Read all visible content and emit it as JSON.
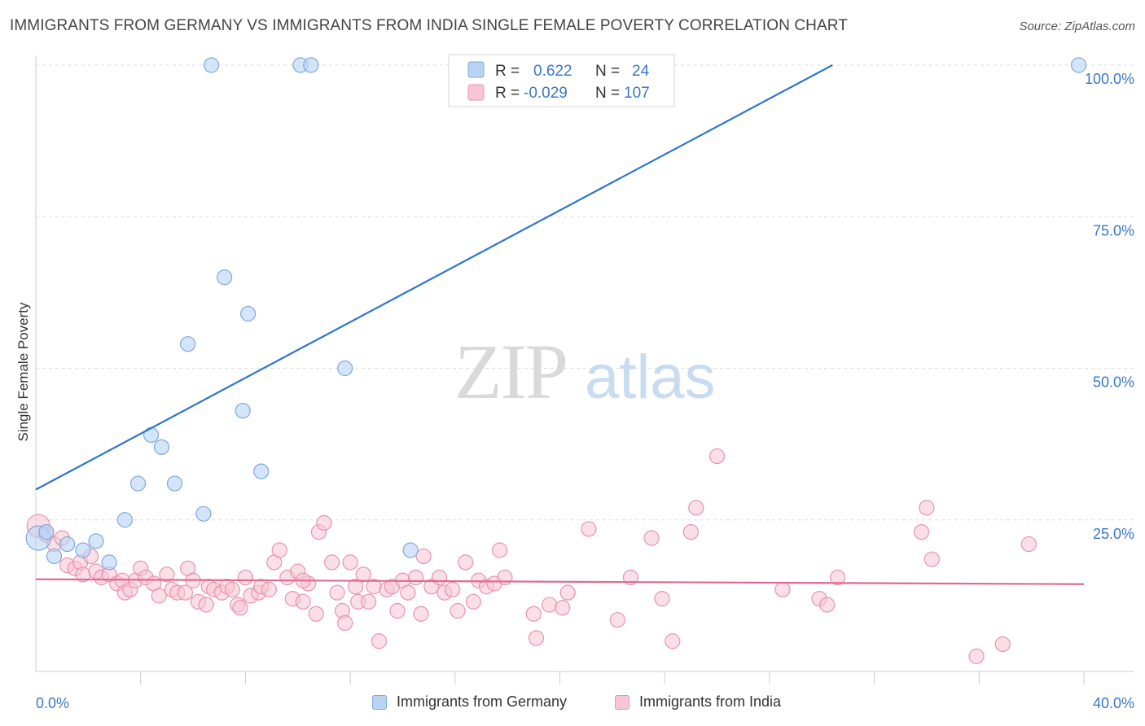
{
  "header": {
    "title": "IMMIGRANTS FROM GERMANY VS IMMIGRANTS FROM INDIA SINGLE FEMALE POVERTY CORRELATION CHART",
    "source": "Source: ZipAtlas.com"
  },
  "watermark": {
    "part1": "ZIP",
    "part2": "atlas"
  },
  "colors": {
    "germany_fill": "#b9d3f5",
    "germany_stroke": "#7fa8dc",
    "germany_line": "#2e75cc",
    "india_fill": "#f8c5d4",
    "india_stroke": "#e893ae",
    "india_line": "#e06a92",
    "value_text": "#3a78c9",
    "grid": "#dddddd"
  },
  "legend_top": {
    "rows": [
      {
        "r_label": "R =",
        "r_value": "0.622",
        "n_label": "N =",
        "n_value": "24"
      },
      {
        "r_label": "R =",
        "r_value": "-0.029",
        "n_label": "N =",
        "n_value": "107"
      }
    ]
  },
  "legend_bottom": {
    "germany": "Immigrants from Germany",
    "india": "Immigrants from India"
  },
  "chart_data": {
    "type": "scatter",
    "title": "IMMIGRANTS FROM GERMANY VS IMMIGRANTS FROM INDIA SINGLE FEMALE POVERTY CORRELATION CHART",
    "xlabel": "",
    "ylabel": "Single Female Poverty",
    "xlim": [
      0,
      40
    ],
    "ylim": [
      0,
      100
    ],
    "x_tick_labels": [
      "0.0%",
      "40.0%"
    ],
    "y_tick_labels": [
      {
        "value": 100,
        "label": "100.0%"
      },
      {
        "value": 75,
        "label": "75.0%"
      },
      {
        "value": 50,
        "label": "50.0%"
      },
      {
        "value": 25,
        "label": "25.0%"
      }
    ],
    "series": [
      {
        "name": "Immigrants from Germany",
        "R": 0.622,
        "N": 24,
        "trend": {
          "x": [
            0,
            30.4
          ],
          "y": [
            30,
            100
          ]
        },
        "points": [
          {
            "x": 0.1,
            "y": 22,
            "big": true
          },
          {
            "x": 0.4,
            "y": 23
          },
          {
            "x": 0.7,
            "y": 19
          },
          {
            "x": 1.2,
            "y": 21
          },
          {
            "x": 1.8,
            "y": 20
          },
          {
            "x": 2.3,
            "y": 21.5
          },
          {
            "x": 2.8,
            "y": 18
          },
          {
            "x": 3.4,
            "y": 25
          },
          {
            "x": 3.9,
            "y": 31
          },
          {
            "x": 4.4,
            "y": 39
          },
          {
            "x": 4.8,
            "y": 37
          },
          {
            "x": 5.3,
            "y": 31
          },
          {
            "x": 5.8,
            "y": 54
          },
          {
            "x": 6.4,
            "y": 26
          },
          {
            "x": 6.7,
            "y": 100
          },
          {
            "x": 7.2,
            "y": 65
          },
          {
            "x": 7.9,
            "y": 43
          },
          {
            "x": 8.1,
            "y": 59
          },
          {
            "x": 8.6,
            "y": 33
          },
          {
            "x": 10.1,
            "y": 100
          },
          {
            "x": 10.5,
            "y": 100
          },
          {
            "x": 11.8,
            "y": 50
          },
          {
            "x": 14.3,
            "y": 20
          },
          {
            "x": 39.8,
            "y": 100
          }
        ]
      },
      {
        "name": "Immigrants from India",
        "R": -0.029,
        "N": 107,
        "trend": {
          "x": [
            0,
            40
          ],
          "y": [
            15.2,
            14.4
          ]
        },
        "points": [
          {
            "x": 0.1,
            "y": 24,
            "big": true
          },
          {
            "x": 0.4,
            "y": 22.5
          },
          {
            "x": 0.7,
            "y": 21
          },
          {
            "x": 1.0,
            "y": 22
          },
          {
            "x": 1.2,
            "y": 17.5
          },
          {
            "x": 1.5,
            "y": 17
          },
          {
            "x": 1.7,
            "y": 18
          },
          {
            "x": 1.8,
            "y": 16
          },
          {
            "x": 2.1,
            "y": 19
          },
          {
            "x": 2.3,
            "y": 16.5
          },
          {
            "x": 2.5,
            "y": 15.5
          },
          {
            "x": 2.8,
            "y": 16
          },
          {
            "x": 3.1,
            "y": 14.5
          },
          {
            "x": 3.3,
            "y": 15
          },
          {
            "x": 3.4,
            "y": 13
          },
          {
            "x": 3.6,
            "y": 13.5
          },
          {
            "x": 3.8,
            "y": 15
          },
          {
            "x": 4.0,
            "y": 17
          },
          {
            "x": 4.2,
            "y": 15.5
          },
          {
            "x": 4.5,
            "y": 14.5
          },
          {
            "x": 4.7,
            "y": 12.5
          },
          {
            "x": 5.0,
            "y": 16
          },
          {
            "x": 5.2,
            "y": 13.5
          },
          {
            "x": 5.4,
            "y": 13
          },
          {
            "x": 5.7,
            "y": 13
          },
          {
            "x": 5.8,
            "y": 17
          },
          {
            "x": 6.0,
            "y": 15
          },
          {
            "x": 6.2,
            "y": 11.5
          },
          {
            "x": 6.5,
            "y": 11
          },
          {
            "x": 6.6,
            "y": 14
          },
          {
            "x": 6.8,
            "y": 13.5
          },
          {
            "x": 7.1,
            "y": 13
          },
          {
            "x": 7.3,
            "y": 14
          },
          {
            "x": 7.5,
            "y": 13.5
          },
          {
            "x": 7.7,
            "y": 11
          },
          {
            "x": 7.8,
            "y": 10.5
          },
          {
            "x": 8.0,
            "y": 15.5
          },
          {
            "x": 8.2,
            "y": 12.5
          },
          {
            "x": 8.5,
            "y": 13
          },
          {
            "x": 8.6,
            "y": 14
          },
          {
            "x": 8.9,
            "y": 13.5
          },
          {
            "x": 9.1,
            "y": 18
          },
          {
            "x": 9.3,
            "y": 20
          },
          {
            "x": 9.6,
            "y": 15.5
          },
          {
            "x": 9.8,
            "y": 12
          },
          {
            "x": 10.0,
            "y": 16.5
          },
          {
            "x": 10.2,
            "y": 11.5
          },
          {
            "x": 10.4,
            "y": 14.5
          },
          {
            "x": 10.7,
            "y": 9.5
          },
          {
            "x": 10.8,
            "y": 23
          },
          {
            "x": 11.0,
            "y": 24.5
          },
          {
            "x": 11.3,
            "y": 18
          },
          {
            "x": 11.5,
            "y": 13
          },
          {
            "x": 11.7,
            "y": 10
          },
          {
            "x": 11.8,
            "y": 8
          },
          {
            "x": 12.0,
            "y": 18
          },
          {
            "x": 12.3,
            "y": 11.5
          },
          {
            "x": 12.5,
            "y": 16
          },
          {
            "x": 12.7,
            "y": 11.5
          },
          {
            "x": 12.9,
            "y": 14
          },
          {
            "x": 13.1,
            "y": 5
          },
          {
            "x": 13.4,
            "y": 13.5
          },
          {
            "x": 13.6,
            "y": 14
          },
          {
            "x": 13.8,
            "y": 10
          },
          {
            "x": 14.0,
            "y": 15
          },
          {
            "x": 14.2,
            "y": 13
          },
          {
            "x": 14.5,
            "y": 15.5
          },
          {
            "x": 14.7,
            "y": 9.5
          },
          {
            "x": 14.8,
            "y": 19
          },
          {
            "x": 15.1,
            "y": 14
          },
          {
            "x": 15.4,
            "y": 15.5
          },
          {
            "x": 15.6,
            "y": 13
          },
          {
            "x": 15.9,
            "y": 13.5
          },
          {
            "x": 16.1,
            "y": 10
          },
          {
            "x": 16.4,
            "y": 18
          },
          {
            "x": 16.7,
            "y": 11.5
          },
          {
            "x": 16.9,
            "y": 15
          },
          {
            "x": 17.2,
            "y": 14
          },
          {
            "x": 17.5,
            "y": 14.5
          },
          {
            "x": 17.7,
            "y": 20
          },
          {
            "x": 17.9,
            "y": 15.5
          },
          {
            "x": 19.0,
            "y": 9.5
          },
          {
            "x": 19.1,
            "y": 5.5
          },
          {
            "x": 19.6,
            "y": 11
          },
          {
            "x": 20.1,
            "y": 10.5
          },
          {
            "x": 20.3,
            "y": 13
          },
          {
            "x": 21.1,
            "y": 23.5
          },
          {
            "x": 22.2,
            "y": 8.5
          },
          {
            "x": 22.7,
            "y": 15.5
          },
          {
            "x": 23.5,
            "y": 22
          },
          {
            "x": 23.9,
            "y": 12
          },
          {
            "x": 24.3,
            "y": 5
          },
          {
            "x": 25.0,
            "y": 23
          },
          {
            "x": 25.2,
            "y": 27
          },
          {
            "x": 26.0,
            "y": 35.5
          },
          {
            "x": 28.5,
            "y": 13.5
          },
          {
            "x": 29.9,
            "y": 12
          },
          {
            "x": 30.2,
            "y": 11
          },
          {
            "x": 30.6,
            "y": 15.5
          },
          {
            "x": 33.8,
            "y": 23
          },
          {
            "x": 34.0,
            "y": 27
          },
          {
            "x": 34.2,
            "y": 18.5
          },
          {
            "x": 35.9,
            "y": 2.5
          },
          {
            "x": 36.9,
            "y": 4.5
          },
          {
            "x": 37.9,
            "y": 21
          },
          {
            "x": 10.2,
            "y": 15
          },
          {
            "x": 12.2,
            "y": 14
          }
        ]
      }
    ]
  }
}
